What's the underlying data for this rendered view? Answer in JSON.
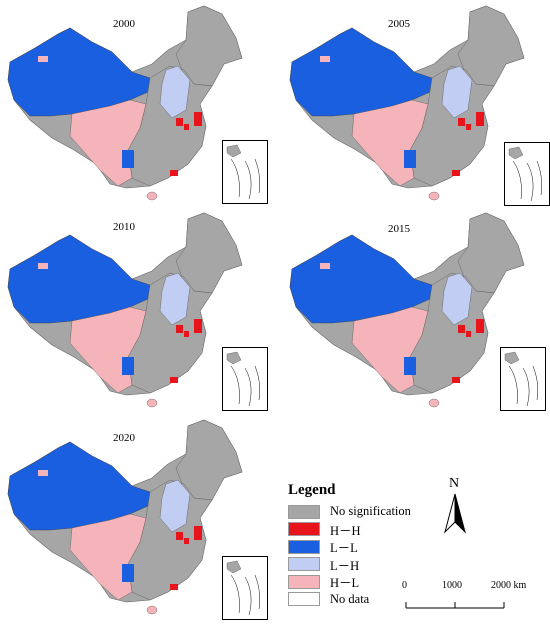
{
  "panels": [
    {
      "year": "2000"
    },
    {
      "year": "2005"
    },
    {
      "year": "2010"
    },
    {
      "year": "2015"
    },
    {
      "year": "2020"
    }
  ],
  "legend": {
    "title": "Legend",
    "items": [
      {
        "label": "No signification",
        "color": "#a6a6a6"
      },
      {
        "label": "H－H",
        "color": "#e8141b"
      },
      {
        "label": "L－L",
        "color": "#1a5fe0"
      },
      {
        "label": "L－H",
        "color": "#c1cdf2"
      },
      {
        "label": "H－L",
        "color": "#f4b4b9"
      },
      {
        "label": "No data",
        "color": "#ffffff"
      }
    ]
  },
  "north_arrow": {
    "label": "N"
  },
  "scale_bar": {
    "labels": [
      "0",
      "1000",
      "2000 km"
    ]
  }
}
